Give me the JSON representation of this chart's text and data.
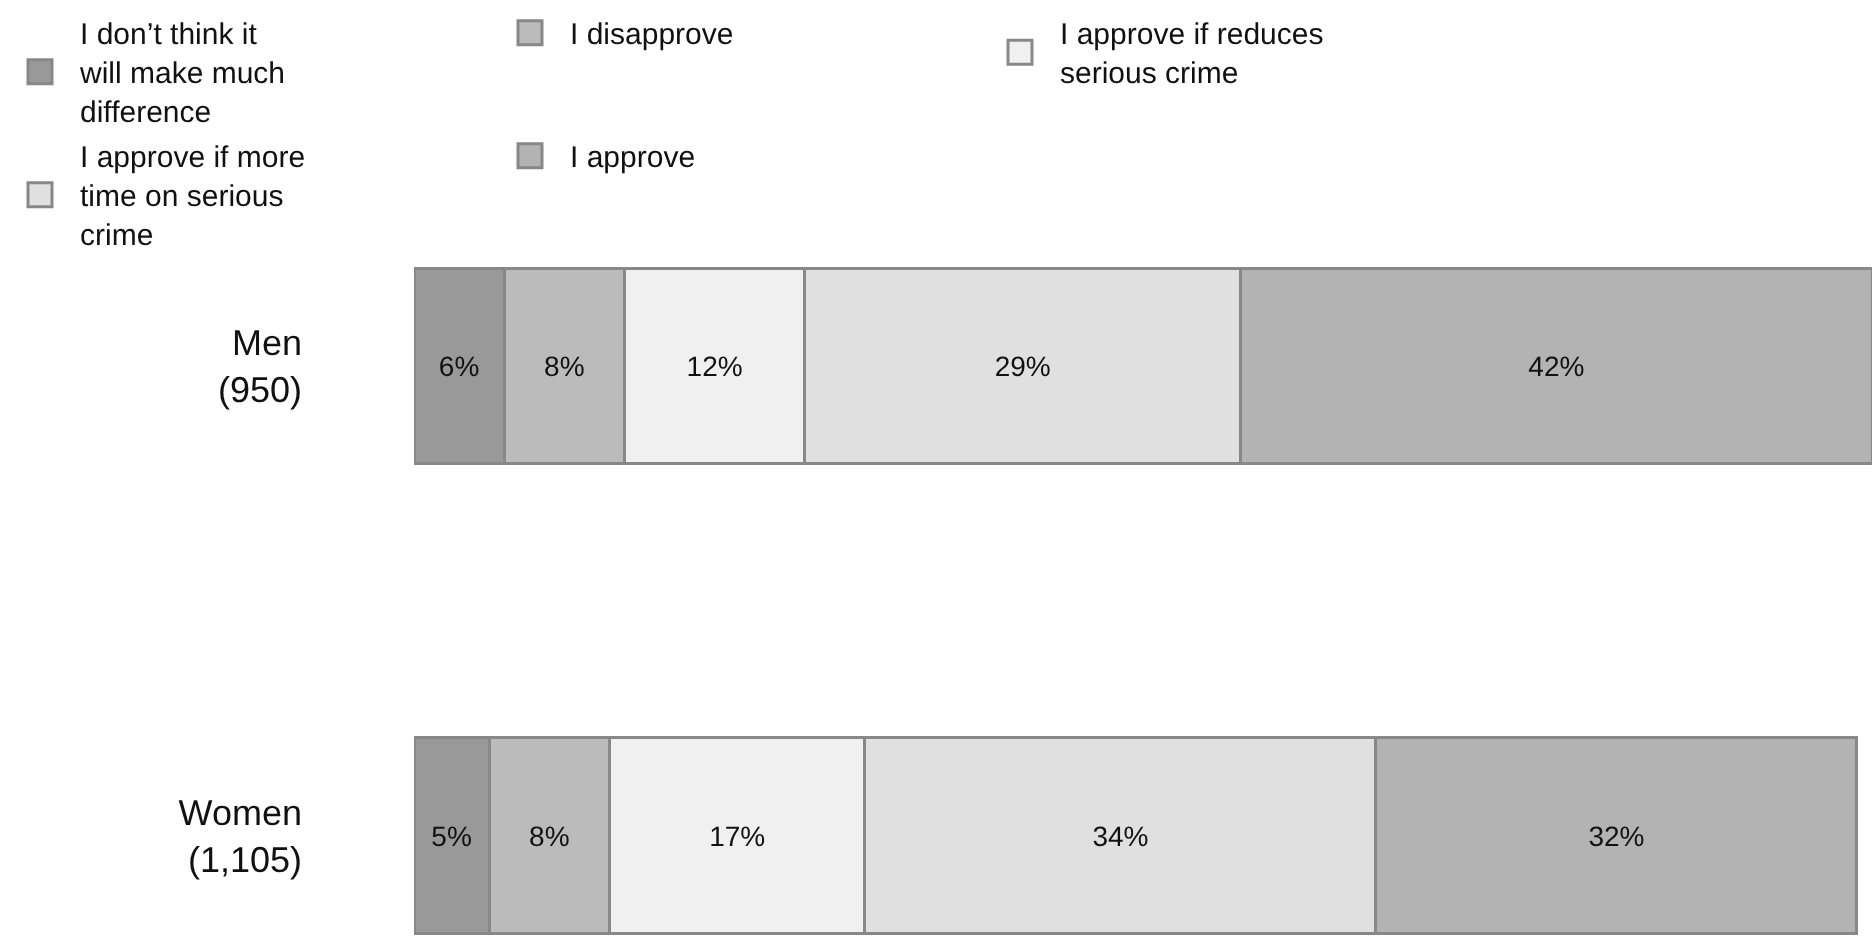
{
  "chart_data": {
    "type": "bar",
    "orientation": "horizontal",
    "stacked": true,
    "categories": [
      "Men\n(950)",
      "Women\n(1,105)"
    ],
    "xlim": [
      0,
      97
    ],
    "tick_labels": "y",
    "legend": "top",
    "series": [
      {
        "name": "I don’t think it will make much difference",
        "color": "#999999",
        "values": [
          6,
          5
        ],
        "value_labels": [
          "6%",
          "5%"
        ]
      },
      {
        "name": "I disapprove",
        "color": "#bbbbbb",
        "values": [
          8,
          8
        ],
        "value_labels": [
          "8%",
          "8%"
        ]
      },
      {
        "name": "I approve if reduces serious crime",
        "color": "#f0f0f0",
        "values": [
          12,
          17
        ],
        "value_labels": [
          "12%",
          "17%"
        ]
      },
      {
        "name": "I approve if more time on serious crime",
        "color": "#e0e0e0",
        "values": [
          29,
          34
        ],
        "value_labels": [
          "29%",
          "34%"
        ]
      },
      {
        "name": "I approve",
        "color": "#b3b3b3",
        "values": [
          42,
          32
        ],
        "value_labels": [
          "42%",
          "32%"
        ]
      }
    ]
  }
}
